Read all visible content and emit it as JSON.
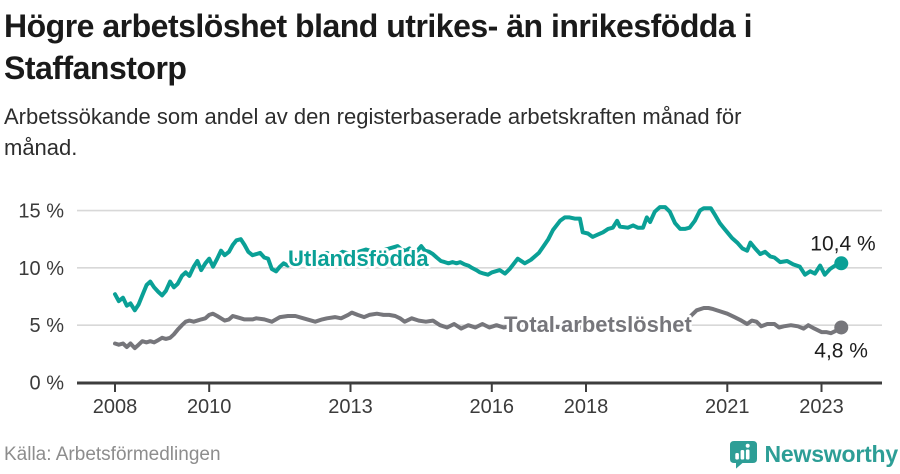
{
  "chart_data": {
    "type": "line",
    "title": "Högre arbetslöshet bland utrikes- än inrikesfödda i Staffanstorp",
    "subtitle": "Arbetssökande som andel av den registerbaserade arbetskraften månad för månad.",
    "grid": true,
    "legend_position": "inline-labels",
    "x_axis": {
      "range": [
        2008,
        2023.6
      ],
      "ticks": [
        2008,
        2010,
        2013,
        2016,
        2018,
        2021,
        2023
      ],
      "tick_labels": [
        "2008",
        "2010",
        "2013",
        "2016",
        "2018",
        "2021",
        "2023"
      ]
    },
    "y_axis": {
      "range": [
        0,
        16
      ],
      "ticks": [
        0,
        5,
        10,
        15
      ],
      "tick_labels": [
        "0 %",
        "5 %",
        "10 %",
        "15 %"
      ],
      "unit": "%"
    },
    "series": [
      {
        "name": "Utlandsfödda",
        "color": "#0aa096",
        "end_value": 10.4,
        "end_label": "10,4 %",
        "points": [
          [
            2008.0,
            7.7
          ],
          [
            2008.08,
            7.1
          ],
          [
            2008.17,
            7.4
          ],
          [
            2008.25,
            6.7
          ],
          [
            2008.33,
            6.9
          ],
          [
            2008.42,
            6.3
          ],
          [
            2008.5,
            6.8
          ],
          [
            2008.58,
            7.6
          ],
          [
            2008.67,
            8.5
          ],
          [
            2008.75,
            8.8
          ],
          [
            2008.83,
            8.3
          ],
          [
            2008.92,
            7.9
          ],
          [
            2009.0,
            7.6
          ],
          [
            2009.08,
            8.0
          ],
          [
            2009.17,
            8.8
          ],
          [
            2009.25,
            8.3
          ],
          [
            2009.33,
            8.6
          ],
          [
            2009.42,
            9.3
          ],
          [
            2009.5,
            9.6
          ],
          [
            2009.58,
            9.3
          ],
          [
            2009.67,
            10.1
          ],
          [
            2009.75,
            10.6
          ],
          [
            2009.83,
            9.8
          ],
          [
            2009.92,
            10.4
          ],
          [
            2010.0,
            10.8
          ],
          [
            2010.08,
            10.1
          ],
          [
            2010.17,
            10.8
          ],
          [
            2010.25,
            11.5
          ],
          [
            2010.33,
            11.1
          ],
          [
            2010.42,
            11.4
          ],
          [
            2010.5,
            12.0
          ],
          [
            2010.58,
            12.4
          ],
          [
            2010.67,
            12.5
          ],
          [
            2010.75,
            12.0
          ],
          [
            2010.83,
            11.4
          ],
          [
            2010.92,
            11.1
          ],
          [
            2011.0,
            11.2
          ],
          [
            2011.08,
            11.3
          ],
          [
            2011.17,
            10.9
          ],
          [
            2011.25,
            10.8
          ],
          [
            2011.33,
            9.9
          ],
          [
            2011.42,
            9.7
          ],
          [
            2011.5,
            10.1
          ],
          [
            2011.58,
            10.4
          ],
          [
            2011.67,
            10.2
          ],
          [
            2011.75,
            10.5
          ],
          [
            2011.83,
            10.7
          ],
          [
            2011.92,
            10.4
          ],
          [
            2012.0,
            10.6
          ],
          [
            2012.17,
            10.9
          ],
          [
            2012.33,
            11.1
          ],
          [
            2012.5,
            11.3
          ],
          [
            2012.67,
            11.0
          ],
          [
            2012.83,
            11.4
          ],
          [
            2013.0,
            11.2
          ],
          [
            2013.17,
            11.4
          ],
          [
            2013.33,
            11.6
          ],
          [
            2013.5,
            11.4
          ],
          [
            2013.67,
            11.5
          ],
          [
            2013.83,
            11.7
          ],
          [
            2014.0,
            11.9
          ],
          [
            2014.08,
            11.6
          ],
          [
            2014.17,
            11.5
          ],
          [
            2014.25,
            11.7
          ],
          [
            2014.33,
            11.4
          ],
          [
            2014.42,
            11.5
          ],
          [
            2014.5,
            11.9
          ],
          [
            2014.58,
            11.5
          ],
          [
            2014.67,
            11.4
          ],
          [
            2014.75,
            11.2
          ],
          [
            2014.83,
            10.9
          ],
          [
            2014.92,
            10.6
          ],
          [
            2015.0,
            10.5
          ],
          [
            2015.08,
            10.4
          ],
          [
            2015.17,
            10.5
          ],
          [
            2015.25,
            10.4
          ],
          [
            2015.33,
            10.5
          ],
          [
            2015.42,
            10.3
          ],
          [
            2015.5,
            10.2
          ],
          [
            2015.58,
            10.0
          ],
          [
            2015.67,
            9.8
          ],
          [
            2015.75,
            9.6
          ],
          [
            2015.83,
            9.5
          ],
          [
            2015.92,
            9.4
          ],
          [
            2016.0,
            9.6
          ],
          [
            2016.17,
            9.8
          ],
          [
            2016.28,
            9.5
          ],
          [
            2016.38,
            9.9
          ],
          [
            2016.55,
            10.8
          ],
          [
            2016.7,
            10.4
          ],
          [
            2016.83,
            10.7
          ],
          [
            2017.0,
            11.3
          ],
          [
            2017.1,
            11.9
          ],
          [
            2017.2,
            12.5
          ],
          [
            2017.3,
            13.3
          ],
          [
            2017.45,
            14.1
          ],
          [
            2017.55,
            14.4
          ],
          [
            2017.65,
            14.4
          ],
          [
            2017.76,
            14.3
          ],
          [
            2017.87,
            14.3
          ],
          [
            2017.93,
            13.1
          ],
          [
            2018.04,
            13.0
          ],
          [
            2018.14,
            12.7
          ],
          [
            2018.25,
            12.9
          ],
          [
            2018.36,
            13.1
          ],
          [
            2018.47,
            13.4
          ],
          [
            2018.57,
            13.5
          ],
          [
            2018.66,
            14.1
          ],
          [
            2018.72,
            13.6
          ],
          [
            2018.89,
            13.5
          ],
          [
            2019.0,
            13.7
          ],
          [
            2019.1,
            13.5
          ],
          [
            2019.21,
            13.5
          ],
          [
            2019.29,
            14.4
          ],
          [
            2019.36,
            14.0
          ],
          [
            2019.46,
            14.9
          ],
          [
            2019.57,
            15.3
          ],
          [
            2019.68,
            15.3
          ],
          [
            2019.78,
            14.9
          ],
          [
            2019.89,
            13.9
          ],
          [
            2020.0,
            13.4
          ],
          [
            2020.1,
            13.4
          ],
          [
            2020.2,
            13.5
          ],
          [
            2020.31,
            14.1
          ],
          [
            2020.42,
            15.0
          ],
          [
            2020.5,
            15.2
          ],
          [
            2020.65,
            15.2
          ],
          [
            2020.74,
            14.6
          ],
          [
            2020.84,
            13.9
          ],
          [
            2020.92,
            13.5
          ],
          [
            2021.0,
            13.1
          ],
          [
            2021.1,
            12.6
          ],
          [
            2021.21,
            12.2
          ],
          [
            2021.32,
            11.7
          ],
          [
            2021.42,
            11.5
          ],
          [
            2021.49,
            12.2
          ],
          [
            2021.59,
            11.7
          ],
          [
            2021.7,
            11.2
          ],
          [
            2021.8,
            11.4
          ],
          [
            2021.91,
            11.0
          ],
          [
            2022.0,
            10.9
          ],
          [
            2022.12,
            10.5
          ],
          [
            2022.27,
            10.6
          ],
          [
            2022.4,
            10.3
          ],
          [
            2022.54,
            10.1
          ],
          [
            2022.65,
            9.4
          ],
          [
            2022.76,
            9.7
          ],
          [
            2022.86,
            9.5
          ],
          [
            2022.97,
            10.2
          ],
          [
            2023.07,
            9.4
          ],
          [
            2023.18,
            9.9
          ],
          [
            2023.29,
            10.2
          ],
          [
            2023.42,
            10.4
          ]
        ]
      },
      {
        "name": "Total arbetslöshet",
        "color": "#76767b",
        "end_value": 4.8,
        "end_label": "4,8 %",
        "points": [
          [
            2008.0,
            3.4
          ],
          [
            2008.08,
            3.3
          ],
          [
            2008.17,
            3.4
          ],
          [
            2008.25,
            3.1
          ],
          [
            2008.33,
            3.4
          ],
          [
            2008.42,
            3.0
          ],
          [
            2008.5,
            3.3
          ],
          [
            2008.58,
            3.6
          ],
          [
            2008.67,
            3.5
          ],
          [
            2008.75,
            3.6
          ],
          [
            2008.83,
            3.5
          ],
          [
            2008.92,
            3.7
          ],
          [
            2009.0,
            3.9
          ],
          [
            2009.08,
            3.8
          ],
          [
            2009.17,
            3.9
          ],
          [
            2009.25,
            4.2
          ],
          [
            2009.33,
            4.6
          ],
          [
            2009.42,
            5.0
          ],
          [
            2009.5,
            5.3
          ],
          [
            2009.58,
            5.4
          ],
          [
            2009.67,
            5.3
          ],
          [
            2009.75,
            5.4
          ],
          [
            2009.83,
            5.5
          ],
          [
            2009.92,
            5.6
          ],
          [
            2010.0,
            5.9
          ],
          [
            2010.08,
            6.0
          ],
          [
            2010.17,
            5.8
          ],
          [
            2010.25,
            5.6
          ],
          [
            2010.33,
            5.4
          ],
          [
            2010.42,
            5.5
          ],
          [
            2010.5,
            5.8
          ],
          [
            2010.58,
            5.7
          ],
          [
            2010.67,
            5.6
          ],
          [
            2010.75,
            5.5
          ],
          [
            2010.83,
            5.5
          ],
          [
            2010.92,
            5.5
          ],
          [
            2011.0,
            5.6
          ],
          [
            2011.17,
            5.5
          ],
          [
            2011.33,
            5.3
          ],
          [
            2011.5,
            5.7
          ],
          [
            2011.67,
            5.8
          ],
          [
            2011.83,
            5.8
          ],
          [
            2012.0,
            5.6
          ],
          [
            2012.25,
            5.3
          ],
          [
            2012.4,
            5.5
          ],
          [
            2012.5,
            5.6
          ],
          [
            2012.67,
            5.7
          ],
          [
            2012.8,
            5.6
          ],
          [
            2012.95,
            5.9
          ],
          [
            2013.03,
            6.1
          ],
          [
            2013.15,
            5.9
          ],
          [
            2013.29,
            5.7
          ],
          [
            2013.4,
            5.9
          ],
          [
            2013.56,
            6.0
          ],
          [
            2013.7,
            5.9
          ],
          [
            2013.82,
            5.9
          ],
          [
            2013.95,
            5.8
          ],
          [
            2014.05,
            5.6
          ],
          [
            2014.15,
            5.3
          ],
          [
            2014.3,
            5.6
          ],
          [
            2014.45,
            5.4
          ],
          [
            2014.6,
            5.3
          ],
          [
            2014.75,
            5.4
          ],
          [
            2014.9,
            5.0
          ],
          [
            2015.05,
            4.8
          ],
          [
            2015.2,
            5.1
          ],
          [
            2015.35,
            4.7
          ],
          [
            2015.5,
            5.0
          ],
          [
            2015.65,
            4.8
          ],
          [
            2015.8,
            5.1
          ],
          [
            2015.95,
            4.8
          ],
          [
            2016.1,
            5.0
          ],
          [
            2016.25,
            4.8
          ],
          [
            2016.4,
            4.9
          ],
          [
            2016.6,
            5.1
          ],
          [
            2016.8,
            4.9
          ],
          [
            2017.0,
            5.0
          ],
          [
            2017.25,
            4.9
          ],
          [
            2017.5,
            4.8
          ],
          [
            2017.75,
            4.9
          ],
          [
            2018.0,
            4.7
          ],
          [
            2018.25,
            4.8
          ],
          [
            2018.5,
            4.7
          ],
          [
            2018.75,
            4.7
          ],
          [
            2019.0,
            4.6
          ],
          [
            2019.25,
            4.7
          ],
          [
            2019.5,
            4.6
          ],
          [
            2019.75,
            4.7
          ],
          [
            2019.9,
            4.8
          ],
          [
            2020.05,
            5.1
          ],
          [
            2020.2,
            5.7
          ],
          [
            2020.35,
            6.3
          ],
          [
            2020.5,
            6.5
          ],
          [
            2020.6,
            6.5
          ],
          [
            2020.7,
            6.4
          ],
          [
            2020.85,
            6.2
          ],
          [
            2021.0,
            6.0
          ],
          [
            2021.15,
            5.7
          ],
          [
            2021.3,
            5.4
          ],
          [
            2021.42,
            5.1
          ],
          [
            2021.52,
            5.4
          ],
          [
            2021.62,
            5.3
          ],
          [
            2021.72,
            4.9
          ],
          [
            2021.85,
            5.1
          ],
          [
            2022.0,
            5.1
          ],
          [
            2022.1,
            4.8
          ],
          [
            2022.2,
            4.9
          ],
          [
            2022.35,
            5.0
          ],
          [
            2022.5,
            4.9
          ],
          [
            2022.62,
            4.7
          ],
          [
            2022.72,
            5.0
          ],
          [
            2022.85,
            4.7
          ],
          [
            2023.0,
            4.4
          ],
          [
            2023.1,
            4.4
          ],
          [
            2023.2,
            4.3
          ],
          [
            2023.3,
            4.5
          ],
          [
            2023.42,
            4.8
          ]
        ]
      }
    ],
    "colors": {
      "grid": "#d8d8d8",
      "axis": "#3d3d3d",
      "tick_text": "#3b3b3b",
      "value_label_text": "#1d1d1d"
    }
  },
  "footer": {
    "source": "Källa: Arbetsförmedlingen",
    "brand": "Newsworthy",
    "brand_color": "#2d9e96"
  }
}
